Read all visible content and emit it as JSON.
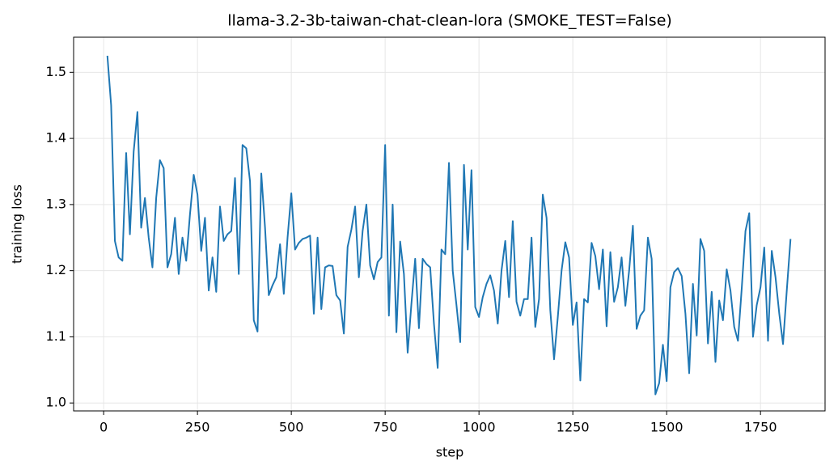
{
  "chart_data": {
    "type": "line",
    "title": "llama-3.2-3b-taiwan-chat-clean-lora  (SMOKE_TEST=False)",
    "xlabel": "step",
    "ylabel": "training loss",
    "x": [
      10,
      20,
      30,
      40,
      50,
      60,
      70,
      80,
      90,
      100,
      110,
      120,
      130,
      140,
      150,
      160,
      170,
      180,
      190,
      200,
      210,
      220,
      230,
      240,
      250,
      260,
      270,
      280,
      290,
      300,
      310,
      320,
      330,
      340,
      350,
      360,
      370,
      380,
      390,
      400,
      410,
      420,
      430,
      440,
      450,
      460,
      470,
      480,
      490,
      500,
      510,
      520,
      530,
      540,
      550,
      560,
      570,
      580,
      590,
      600,
      610,
      620,
      630,
      640,
      650,
      660,
      670,
      680,
      690,
      700,
      710,
      720,
      730,
      740,
      750,
      760,
      770,
      780,
      790,
      800,
      810,
      820,
      830,
      840,
      850,
      860,
      870,
      880,
      890,
      900,
      910,
      920,
      930,
      940,
      950,
      960,
      970,
      980,
      990,
      1000,
      1010,
      1020,
      1030,
      1040,
      1050,
      1060,
      1070,
      1080,
      1090,
      1100,
      1110,
      1120,
      1130,
      1140,
      1150,
      1160,
      1170,
      1180,
      1190,
      1200,
      1210,
      1220,
      1230,
      1240,
      1250,
      1260,
      1270,
      1280,
      1290,
      1300,
      1310,
      1320,
      1330,
      1340,
      1350,
      1360,
      1370,
      1380,
      1390,
      1400,
      1410,
      1420,
      1430,
      1440,
      1450,
      1460,
      1470,
      1480,
      1490,
      1500,
      1510,
      1520,
      1530,
      1540,
      1550,
      1560,
      1570,
      1580,
      1590,
      1600,
      1610,
      1620,
      1630,
      1640,
      1650,
      1660,
      1670,
      1680,
      1690,
      1700,
      1710,
      1720,
      1730,
      1740,
      1750,
      1760,
      1770,
      1780,
      1790,
      1800,
      1810,
      1820,
      1830
    ],
    "series": [
      {
        "color": "#1f77b4",
        "values": [
          1.525,
          1.45,
          1.245,
          1.22,
          1.215,
          1.378,
          1.255,
          1.38,
          1.44,
          1.265,
          1.31,
          1.25,
          1.205,
          1.31,
          1.367,
          1.355,
          1.205,
          1.225,
          1.28,
          1.195,
          1.25,
          1.215,
          1.285,
          1.345,
          1.315,
          1.23,
          1.28,
          1.17,
          1.22,
          1.168,
          1.297,
          1.245,
          1.255,
          1.26,
          1.34,
          1.195,
          1.39,
          1.385,
          1.335,
          1.125,
          1.108,
          1.347,
          1.265,
          1.163,
          1.178,
          1.19,
          1.24,
          1.165,
          1.25,
          1.317,
          1.232,
          1.242,
          1.248,
          1.25,
          1.253,
          1.135,
          1.25,
          1.142,
          1.205,
          1.208,
          1.207,
          1.163,
          1.155,
          1.105,
          1.236,
          1.262,
          1.297,
          1.19,
          1.26,
          1.3,
          1.208,
          1.187,
          1.213,
          1.22,
          1.39,
          1.132,
          1.3,
          1.107,
          1.244,
          1.195,
          1.076,
          1.15,
          1.218,
          1.113,
          1.218,
          1.21,
          1.205,
          1.12,
          1.053,
          1.232,
          1.225,
          1.363,
          1.2,
          1.148,
          1.092,
          1.36,
          1.232,
          1.352,
          1.145,
          1.13,
          1.16,
          1.18,
          1.193,
          1.17,
          1.12,
          1.2,
          1.245,
          1.16,
          1.275,
          1.153,
          1.132,
          1.157,
          1.157,
          1.25,
          1.115,
          1.157,
          1.315,
          1.28,
          1.14,
          1.066,
          1.13,
          1.2,
          1.243,
          1.22,
          1.118,
          1.152,
          1.034,
          1.157,
          1.152,
          1.242,
          1.222,
          1.172,
          1.232,
          1.116,
          1.228,
          1.153,
          1.175,
          1.22,
          1.147,
          1.2,
          1.268,
          1.112,
          1.132,
          1.14,
          1.25,
          1.218,
          1.013,
          1.03,
          1.088,
          1.033,
          1.175,
          1.198,
          1.204,
          1.192,
          1.135,
          1.045,
          1.18,
          1.102,
          1.248,
          1.23,
          1.09,
          1.168,
          1.062,
          1.155,
          1.125,
          1.202,
          1.17,
          1.115,
          1.094,
          1.173,
          1.26,
          1.287,
          1.1,
          1.148,
          1.175,
          1.235,
          1.094,
          1.23,
          1.19,
          1.135,
          1.089,
          1.17,
          1.248
        ]
      }
    ],
    "xlim": [
      -80,
      1922
    ],
    "ylim": [
      0.988,
      1.553
    ],
    "xticks": [
      0,
      250,
      500,
      750,
      1000,
      1250,
      1500,
      1750
    ],
    "yticks": [
      {
        "value": 1,
        "label": "1.0"
      },
      1.1,
      1.2,
      1.3,
      1.4,
      1.5
    ],
    "grid": true
  }
}
